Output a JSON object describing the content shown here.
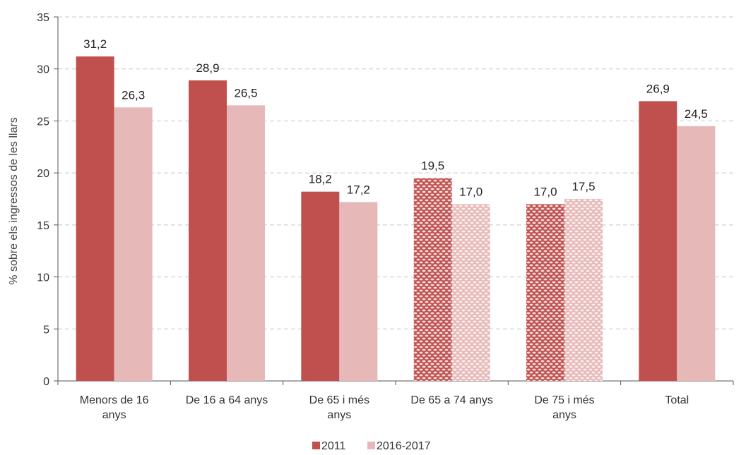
{
  "chart_data": {
    "type": "bar",
    "categories": [
      [
        "Menors de 16",
        "anys"
      ],
      [
        "De 16 a 64 anys"
      ],
      [
        "De 65 i més",
        "anys"
      ],
      [
        "De 65 a 74 anys"
      ],
      [
        "De 75 i més",
        "anys"
      ],
      [
        "Total"
      ]
    ],
    "series": [
      {
        "name": "2011",
        "values": [
          31.2,
          28.9,
          18.2,
          19.5,
          17.0,
          26.9
        ],
        "color": "#c0504d"
      },
      {
        "name": "2016-2017",
        "values": [
          26.3,
          26.5,
          17.2,
          17.0,
          17.5,
          24.5
        ],
        "color": "#e6b9b8"
      }
    ],
    "value_labels": [
      [
        "31,2",
        "28,9",
        "18,2",
        "19,5",
        "17,0",
        "26,9"
      ],
      [
        "26,3",
        "26,5",
        "17,2",
        "17,0",
        "17,5",
        "24,5"
      ]
    ],
    "patterned_categories": [
      3,
      4
    ],
    "ylabel": "% sobre els ingressos de les llars",
    "ylim": [
      0,
      35
    ],
    "yticks": [
      0,
      5,
      10,
      15,
      20,
      25,
      30,
      35
    ],
    "grid": true,
    "legend": "bottom"
  }
}
